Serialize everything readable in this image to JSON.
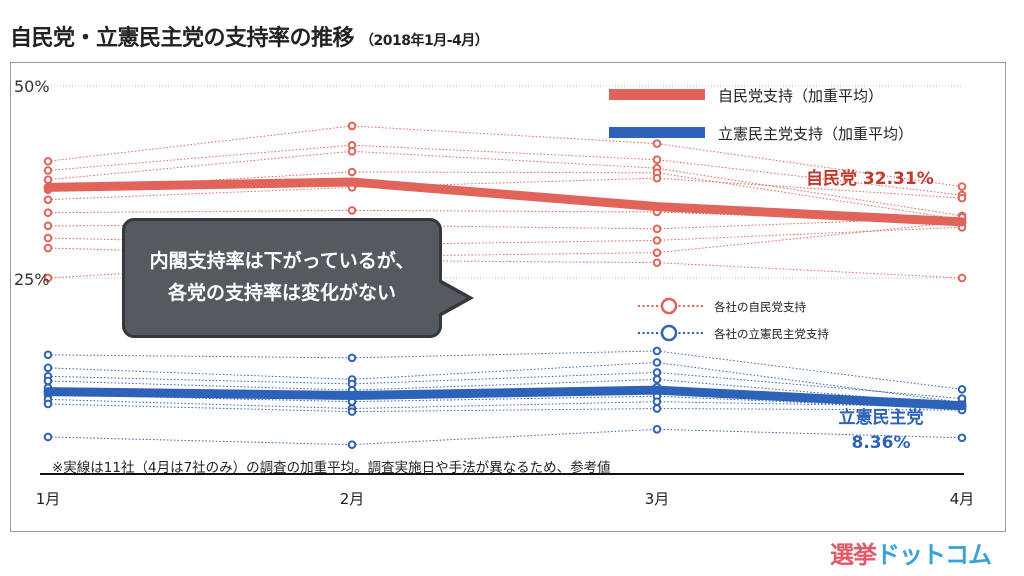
{
  "title": "自民党・立憲民主党の支持率の推移",
  "subtitle": "（2018年1月-4月）",
  "callout": {
    "line1": "内閣支持率は下がっているが、",
    "line2": "各党の支持率は変化がない"
  },
  "note": "※実線は11社（4月は7社のみ）の調査の加重平均。調査実施日や手法が異なるため、参考値",
  "logo": {
    "part1": "選挙",
    "part2": "ドットコム",
    "color1": "#e05a6a",
    "color2": "#3aa0d8"
  },
  "chart_data": {
    "type": "line",
    "categories": [
      "1月",
      "2月",
      "3月",
      "4月"
    ],
    "y_ticks": [
      {
        "value": 50,
        "label": "50%"
      },
      {
        "value": 25,
        "label": "25%"
      }
    ],
    "ylim": [
      0,
      50
    ],
    "series": [
      {
        "name": "自民党支持（加重平均）",
        "kind": "average",
        "color": "#e0645a",
        "values": [
          36.8,
          37.5,
          34.3,
          32.31
        ]
      },
      {
        "name": "立憲民主党支持（加重平均）",
        "kind": "average",
        "color": "#2e62b8",
        "values": [
          10.2,
          9.7,
          10.4,
          8.36
        ]
      }
    ],
    "company_series": {
      "ldp": {
        "name": "各社の自民党支持",
        "color": "#e0645a",
        "lines": [
          [
            40.2,
            44.8,
            42.5,
            36.9
          ],
          [
            39.0,
            42.3,
            40.4,
            35.8
          ],
          [
            37.8,
            41.5,
            39.3,
            33.1
          ],
          [
            36.5,
            38.8,
            38.7,
            32.6
          ],
          [
            35.2,
            36.8,
            38.0,
            35.4
          ],
          [
            33.5,
            33.8,
            33.6,
            32.1
          ],
          [
            31.8,
            31.9,
            31.4,
            32.9
          ],
          [
            30.2,
            29.3,
            29.9,
            31.6
          ],
          [
            28.9,
            27.8,
            28.3,
            32.3
          ],
          [
            25.0,
            27.3,
            27.0,
            25.0
          ]
        ]
      },
      "cdp": {
        "name": "各社の立憲民主党支持",
        "color": "#2e62b8",
        "lines": [
          [
            15.0,
            14.6,
            15.5,
            10.5
          ],
          [
            13.3,
            11.8,
            14.0,
            8.8
          ],
          [
            12.2,
            11.2,
            12.7,
            9.3
          ],
          [
            11.6,
            10.4,
            11.8,
            8.5
          ],
          [
            10.7,
            9.7,
            10.8,
            8.1
          ],
          [
            9.8,
            8.9,
            9.6,
            7.9
          ],
          [
            9.2,
            8.0,
            8.9,
            8.2
          ],
          [
            8.6,
            7.6,
            8.0,
            7.8
          ],
          [
            4.3,
            3.3,
            5.3,
            4.2
          ]
        ]
      }
    },
    "annotations": {
      "ldp_label": "自民党 32.31%",
      "cdp_label_line1": "立憲民主党",
      "cdp_label_line2": "8.36%"
    }
  }
}
